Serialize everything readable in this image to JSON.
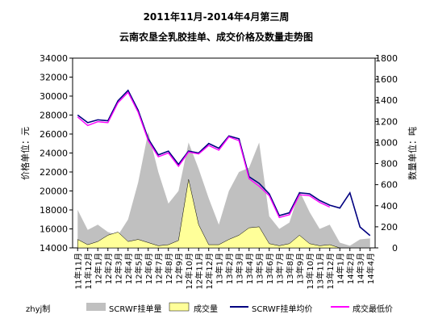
{
  "chart_data": {
    "type": "line",
    "title_line1": "2011年11月-2014年4月第三周",
    "title_line2": "云南农垦全乳胶挂单、成交价格及数量走势图",
    "ylabel_left": "价格单位：元",
    "ylabel_right": "数量单位：吨",
    "ylim_left": [
      14000,
      34000
    ],
    "ylim_right": [
      0,
      1800
    ],
    "yticks_left": [
      "14000",
      "16000",
      "18000",
      "20000",
      "22000",
      "24000",
      "26000",
      "28000",
      "30000",
      "32000",
      "34000"
    ],
    "yticks_right": [
      "0",
      "200",
      "400",
      "600",
      "800",
      "1000",
      "1200",
      "1400",
      "1600",
      "1800"
    ],
    "categories": [
      "11年11月",
      "11年12月",
      "12年1月",
      "12年2月",
      "12年3月",
      "12年4月",
      "12年5月",
      "12年6月",
      "12年7月",
      "12年8月",
      "12年9月",
      "12年10月",
      "12年11月",
      "12年12月",
      "13年1月",
      "13年2月",
      "13年3月",
      "13年4月",
      "13年5月",
      "13年6月",
      "13年7月",
      "13年8月",
      "13年9月",
      "13年10月",
      "13年11月",
      "13年12月",
      "14年1月",
      "14年2月",
      "14年3月",
      "14年4月"
    ],
    "credit": "zhyj制",
    "colors": {
      "listing_volume": "#c0c0c0",
      "deal_volume": "#ffff99",
      "avg_listing_price": "#000080",
      "min_deal_price": "#ff00ff"
    },
    "series": [
      {
        "name": "SCRWF挂单量",
        "kind": "area",
        "axis": "right",
        "values": [
          360,
          170,
          220,
          150,
          120,
          270,
          620,
          1100,
          720,
          420,
          540,
          1000,
          750,
          470,
          220,
          540,
          720,
          760,
          1000,
          300,
          180,
          240,
          540,
          340,
          180,
          220,
          50,
          20,
          80,
          90
        ]
      },
      {
        "name": "成交量",
        "kind": "area",
        "axis": "right",
        "values": [
          80,
          30,
          60,
          120,
          150,
          60,
          80,
          50,
          20,
          30,
          70,
          650,
          220,
          30,
          30,
          80,
          120,
          190,
          200,
          40,
          20,
          40,
          120,
          40,
          20,
          30,
          0,
          0,
          0,
          0
        ]
      },
      {
        "name": "SCRWF挂单均价",
        "kind": "line",
        "axis": "left",
        "values": [
          28000,
          27200,
          27500,
          27400,
          29500,
          30600,
          28500,
          25500,
          23800,
          24200,
          22800,
          24200,
          24000,
          25000,
          24500,
          25800,
          25500,
          21500,
          20800,
          19700,
          17400,
          17700,
          19800,
          19700,
          19000,
          18500,
          18200,
          19800,
          16200,
          15300
        ]
      },
      {
        "name": "成交最低价",
        "kind": "line",
        "axis": "left",
        "values": [
          27800,
          26900,
          27300,
          27200,
          29300,
          30400,
          28300,
          25300,
          23600,
          24000,
          22600,
          24100,
          23900,
          24800,
          24300,
          25700,
          25300,
          21300,
          20500,
          19500,
          17200,
          17500,
          19600,
          19500,
          18800,
          18300,
          null,
          null,
          null,
          null
        ]
      }
    ]
  }
}
